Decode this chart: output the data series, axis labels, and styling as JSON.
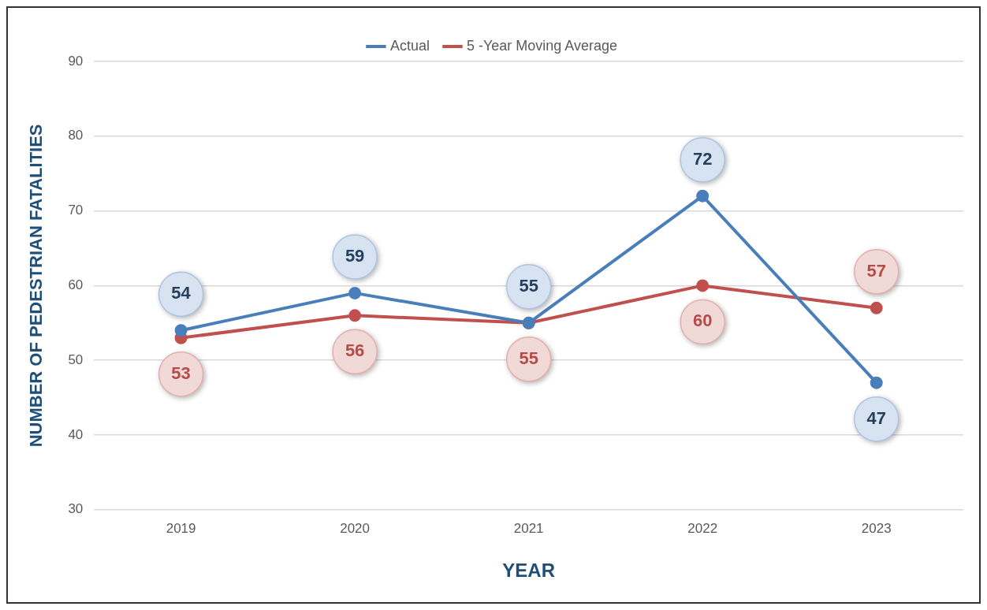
{
  "chart_data": {
    "type": "line",
    "xlabel": "YEAR",
    "ylabel": "NUMBER OF PEDESTRIAN FATALITIES",
    "categories": [
      "2019",
      "2020",
      "2021",
      "2022",
      "2023"
    ],
    "series": [
      {
        "name": "Actual",
        "color": "#4a7ebb",
        "values": [
          54,
          59,
          55,
          72,
          47
        ]
      },
      {
        "name": "5 -Year Moving Average",
        "color": "#c0504d",
        "values": [
          53,
          56,
          55,
          60,
          57
        ]
      }
    ],
    "ylim": [
      30,
      90
    ],
    "yticks": [
      30,
      40,
      50,
      60,
      70,
      80,
      90
    ],
    "grid": "y",
    "legend": "top",
    "marker": "circle",
    "line_style": "solid",
    "data_labels": true
  }
}
